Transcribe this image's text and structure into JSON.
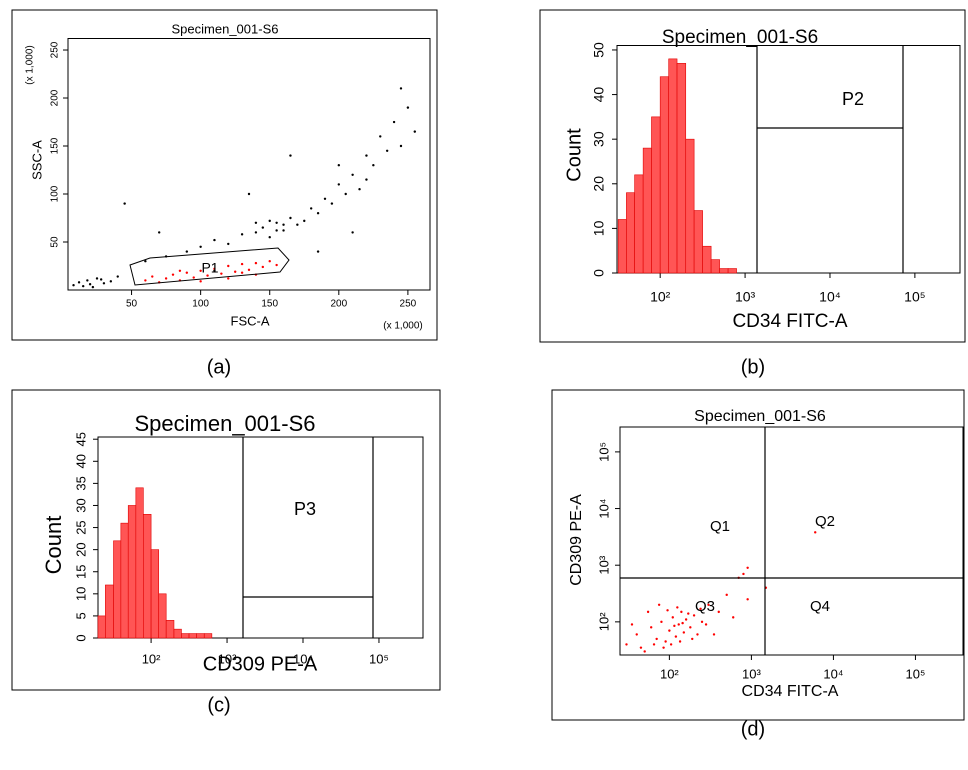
{
  "chart_data": [
    {
      "type": "scatter",
      "title": "Specimen_001-S6",
      "xlabel": "FSC-A",
      "ylabel": "SSC-A",
      "xlabel_note": "(x 1,000)",
      "ylabel_note": "(x 1,000)",
      "caption": "(a)",
      "xlim": [
        4,
        266
      ],
      "ylim": [
        0,
        262
      ],
      "xticks": [
        50,
        100,
        150,
        200,
        250
      ],
      "yticks": [
        50,
        100,
        150,
        200,
        250
      ],
      "gates": [
        "P1"
      ],
      "series": [
        {
          "color": "#000000",
          "x": [
            8,
            12,
            15,
            18,
            20,
            25,
            30,
            35,
            40,
            22,
            28,
            60,
            75,
            90,
            100,
            110,
            120,
            130,
            140,
            145,
            150,
            155,
            160,
            165,
            170,
            175,
            180,
            185,
            190,
            195,
            200,
            205,
            210,
            215,
            220,
            225,
            230,
            235,
            240,
            245,
            250,
            255,
            70,
            45,
            110,
            165,
            210,
            245,
            135,
            185,
            140,
            150,
            155,
            160,
            200,
            220
          ],
          "y": [
            5,
            8,
            4,
            10,
            6,
            12,
            7,
            9,
            14,
            3,
            11,
            30,
            35,
            40,
            45,
            52,
            48,
            58,
            60,
            65,
            55,
            70,
            62,
            75,
            68,
            72,
            85,
            80,
            95,
            90,
            110,
            100,
            120,
            105,
            140,
            130,
            160,
            145,
            175,
            150,
            190,
            165,
            60,
            90,
            20,
            140,
            60,
            210,
            100,
            40,
            70,
            72,
            62,
            68,
            130,
            115
          ]
        },
        {
          "color": "#ff0000",
          "x": [
            60,
            65,
            70,
            75,
            80,
            85,
            90,
            95,
            100,
            105,
            110,
            115,
            120,
            125,
            130,
            135,
            140,
            145,
            150,
            155,
            100,
            120,
            140,
            85,
            130
          ],
          "y": [
            10,
            14,
            8,
            12,
            16,
            10,
            18,
            13,
            20,
            15,
            22,
            17,
            25,
            19,
            27,
            21,
            28,
            24,
            30,
            26,
            9,
            12,
            16,
            20,
            18
          ]
        }
      ]
    },
    {
      "type": "histogram",
      "title": "Specimen_001-S6",
      "xlabel": "CD34 FITC-A",
      "ylabel": "Count",
      "caption": "(b)",
      "color": "#ff5555",
      "xscale": "log",
      "xlim": [
        31,
        340000
      ],
      "ylim": [
        0,
        51
      ],
      "xticks": [
        {
          "value": 100,
          "label": "10²"
        },
        {
          "value": 1000,
          "label": "10³"
        },
        {
          "value": 10000,
          "label": "10⁴"
        },
        {
          "value": 100000,
          "label": "10⁵"
        }
      ],
      "yticks": [
        0,
        10,
        20,
        30,
        40,
        50
      ],
      "gates": [
        "P2"
      ],
      "bins": [
        32,
        40,
        50,
        63,
        79,
        100,
        126,
        158,
        200,
        251,
        316,
        398,
        501,
        631,
        794,
        1000,
        1259,
        1585
      ],
      "values": [
        12,
        18,
        22,
        28,
        35,
        44,
        48,
        47,
        30,
        14,
        6,
        3,
        1,
        1,
        0,
        0,
        0
      ]
    },
    {
      "type": "histogram",
      "title": "Specimen_001-S6",
      "xlabel": "CD309 PE-A",
      "ylabel": "Count",
      "caption": "(c)",
      "color": "#ff5555",
      "xscale": "log",
      "xlim": [
        20,
        380000
      ],
      "ylim": [
        0,
        45.5
      ],
      "xticks": [
        {
          "value": 100,
          "label": "10²"
        },
        {
          "value": 1000,
          "label": "10³"
        },
        {
          "value": 10000,
          "label": "10⁴"
        },
        {
          "value": 100000,
          "label": "10⁵"
        }
      ],
      "yticks": [
        0,
        5,
        10,
        15,
        20,
        25,
        30,
        35,
        40,
        45
      ],
      "gates": [
        "P3"
      ],
      "bins": [
        20,
        25,
        32,
        40,
        50,
        63,
        79,
        100,
        126,
        158,
        200,
        251,
        316,
        398,
        501,
        631,
        794,
        1000
      ],
      "values": [
        5,
        12,
        22,
        26,
        30,
        34,
        28,
        20,
        10,
        4,
        2,
        1,
        1,
        1,
        1,
        0,
        0
      ]
    },
    {
      "type": "scatter",
      "title": "Specimen_001-S6",
      "xlabel": "CD34 FITC-A",
      "ylabel": "CD309 PE-A",
      "caption": "(d)",
      "xscale": "log",
      "yscale": "log",
      "xlim": [
        25,
        380000
      ],
      "ylim": [
        26,
        275000
      ],
      "xticks": [
        {
          "value": 100,
          "label": "10²"
        },
        {
          "value": 1000,
          "label": "10³"
        },
        {
          "value": 10000,
          "label": "10⁴"
        },
        {
          "value": 100000,
          "label": "10⁵"
        }
      ],
      "yticks": [
        {
          "value": 100,
          "label": "10²"
        },
        {
          "value": 1000,
          "label": "10³"
        },
        {
          "value": 10000,
          "label": "10⁴"
        },
        {
          "value": 100000,
          "label": "10⁵"
        }
      ],
      "gates": [
        "Q1",
        "Q2",
        "Q3",
        "Q4"
      ],
      "series": [
        {
          "color": "#ff0000",
          "x": [
            30,
            40,
            50,
            60,
            70,
            80,
            90,
            100,
            110,
            120,
            130,
            140,
            150,
            160,
            180,
            200,
            220,
            250,
            300,
            400,
            500,
            700,
            900,
            1500,
            6000,
            35,
            45,
            55,
            65,
            75,
            85,
            95,
            105,
            115,
            125,
            135,
            145,
            170,
            190,
            240,
            280,
            350,
            600,
            800,
            900
          ],
          "y": [
            40,
            60,
            30,
            80,
            50,
            100,
            45,
            70,
            120,
            55,
            90,
            150,
            65,
            110,
            80,
            130,
            60,
            100,
            200,
            150,
            300,
            600,
            250,
            400,
            3800,
            90,
            35,
            150,
            40,
            200,
            35,
            160,
            40,
            85,
            180,
            45,
            95,
            140,
            50,
            170,
            90,
            60,
            120,
            700,
            900
          ]
        }
      ]
    }
  ]
}
